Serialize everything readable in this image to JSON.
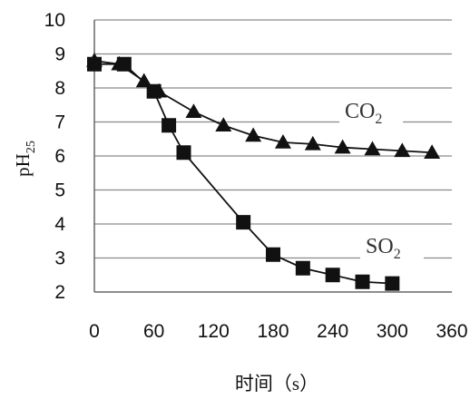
{
  "chart_data": {
    "type": "line",
    "xlabel": "时间（s）",
    "ylabel": "pH25",
    "ylabel_parts": {
      "main": "pH",
      "sub": "25"
    },
    "xlim": [
      0,
      360
    ],
    "ylim": [
      2,
      10
    ],
    "x_ticks": [
      0,
      60,
      120,
      180,
      240,
      300,
      360
    ],
    "y_ticks": [
      2,
      3,
      4,
      5,
      6,
      7,
      8,
      9,
      10
    ],
    "grid": "horizontal",
    "series": [
      {
        "name": "CO2",
        "label_main": "CO",
        "label_sub": "2",
        "marker": "triangle",
        "color": "#111111",
        "x": [
          0,
          25,
          50,
          65,
          100,
          130,
          160,
          190,
          220,
          250,
          280,
          310,
          340
        ],
        "y": [
          8.8,
          8.7,
          8.2,
          7.9,
          7.3,
          6.9,
          6.6,
          6.4,
          6.35,
          6.25,
          6.2,
          6.15,
          6.1
        ]
      },
      {
        "name": "SO2",
        "label_main": "SO",
        "label_sub": "2",
        "marker": "square",
        "color": "#111111",
        "x": [
          0,
          30,
          60,
          75,
          90,
          150,
          180,
          210,
          240,
          270,
          300
        ],
        "y": [
          8.7,
          8.7,
          7.9,
          6.9,
          6.1,
          4.05,
          3.1,
          2.7,
          2.5,
          2.3,
          2.25
        ]
      }
    ]
  }
}
